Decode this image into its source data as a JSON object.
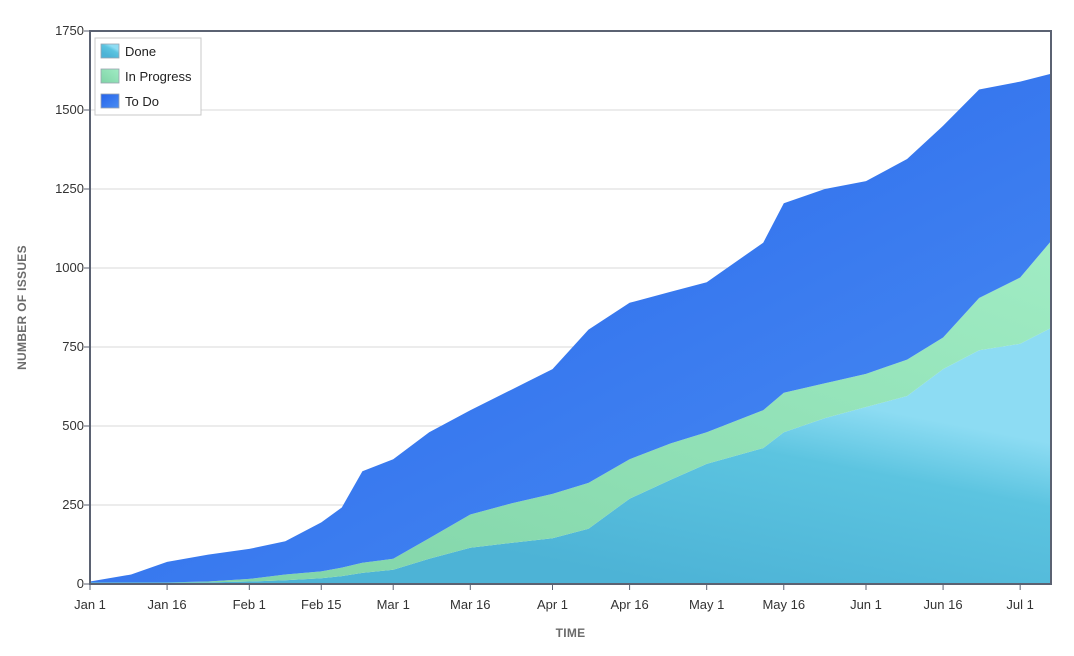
{
  "chart_data": {
    "type": "area",
    "stacked": true,
    "xlabel": "TIME",
    "ylabel": "NUMBER OF ISSUES",
    "ylim": [
      0,
      1750
    ],
    "xlim": [
      "Jan 1",
      "Jul 7"
    ],
    "x_ticks": [
      "Jan 1",
      "Jan 16",
      "Feb 1",
      "Feb 15",
      "Mar 1",
      "Mar 16",
      "Apr 1",
      "Apr 16",
      "May 1",
      "May 16",
      "Jun 1",
      "Jun 16",
      "Jul 1"
    ],
    "y_ticks": [
      0,
      250,
      500,
      750,
      1000,
      1250,
      1500,
      1750
    ],
    "grid": "horizontal",
    "legend": "top-left",
    "x": [
      "Jan 1",
      "Jan 9",
      "Jan 16",
      "Jan 24",
      "Feb 1",
      "Feb 8",
      "Feb 15",
      "Feb 19",
      "Feb 23",
      "Mar 1",
      "Mar 8",
      "Mar 16",
      "Mar 24",
      "Apr 1",
      "Apr 8",
      "Apr 16",
      "Apr 24",
      "May 1",
      "May 12",
      "May 16",
      "May 24",
      "Jun 1",
      "Jun 9",
      "Jun 16",
      "Jun 23",
      "Jul 1",
      "Jul 7"
    ],
    "series": [
      {
        "name": "Done",
        "color": "#4fb5d6",
        "values": [
          5,
          5,
          5,
          5,
          8,
          12,
          18,
          25,
          35,
          45,
          80,
          115,
          130,
          145,
          175,
          270,
          330,
          380,
          430,
          480,
          525,
          560,
          595,
          680,
          740,
          760,
          810
        ]
      },
      {
        "name": "In Progress",
        "color": "#8fe3b7",
        "values": [
          0,
          0,
          0,
          3,
          8,
          18,
          22,
          27,
          32,
          35,
          65,
          105,
          125,
          140,
          145,
          125,
          115,
          100,
          120,
          125,
          110,
          105,
          115,
          100,
          165,
          210,
          275
        ]
      },
      {
        "name": "To Do",
        "color": "#2f74f0",
        "values": [
          3,
          25,
          65,
          85,
          95,
          105,
          155,
          190,
          290,
          315,
          335,
          330,
          360,
          395,
          485,
          495,
          480,
          475,
          530,
          600,
          615,
          610,
          635,
          670,
          660,
          620,
          530
        ]
      }
    ]
  }
}
